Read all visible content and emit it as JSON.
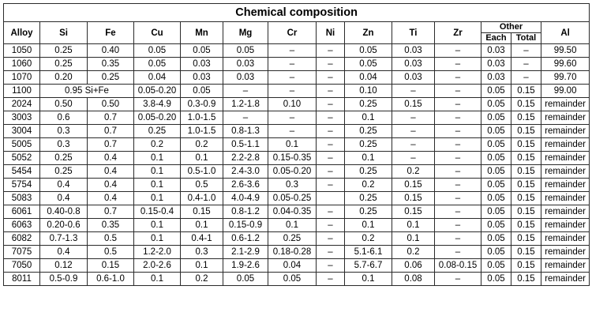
{
  "title": "Chemical composition",
  "headers": {
    "alloy": "Alloy",
    "elements": [
      "Si",
      "Fe",
      "Cu",
      "Mn",
      "Mg",
      "Cr",
      "Ni",
      "Zn",
      "Ti",
      "Zr"
    ],
    "other": "Other",
    "other_each": "Each",
    "other_total": "Total",
    "al": "Al"
  },
  "rows": [
    [
      "1050",
      "0.25",
      "0.40",
      "0.05",
      "0.05",
      "0.05",
      "–",
      "–",
      "0.05",
      "0.03",
      "–",
      "0.03",
      "–",
      "99.50"
    ],
    [
      "1060",
      "0.25",
      "0.35",
      "0.05",
      "0.03",
      "0.03",
      "–",
      "–",
      "0.05",
      "0.03",
      "–",
      "0.03",
      "–",
      "99.60"
    ],
    [
      "1070",
      "0.20",
      "0.25",
      "0.04",
      "0.03",
      "0.03",
      "–",
      "–",
      "0.04",
      "0.03",
      "–",
      "0.03",
      "–",
      "99.70"
    ],
    [
      "1100",
      "0.95 Si+Fe",
      "",
      "0.05-0.20",
      "0.05",
      "–",
      "–",
      "–",
      "0.10",
      "–",
      "–",
      "0.05",
      "0.15",
      "99.00"
    ],
    [
      "2024",
      "0.50",
      "0.50",
      "3.8-4.9",
      "0.3-0.9",
      "1.2-1.8",
      "0.10",
      "–",
      "0.25",
      "0.15",
      "–",
      "0.05",
      "0.15",
      "remainder"
    ],
    [
      "3003",
      "0.6",
      "0.7",
      "0.05-0.20",
      "1.0-1.5",
      "–",
      "–",
      "–",
      "0.1",
      "–",
      "–",
      "0.05",
      "0.15",
      "remainder"
    ],
    [
      "3004",
      "0.3",
      "0.7",
      "0.25",
      "1.0-1.5",
      "0.8-1.3",
      "–",
      "–",
      "0.25",
      "–",
      "–",
      "0.05",
      "0.15",
      "remainder"
    ],
    [
      "5005",
      "0.3",
      "0.7",
      "0.2",
      "0.2",
      "0.5-1.1",
      "0.1",
      "–",
      "0.25",
      "–",
      "–",
      "0.05",
      "0.15",
      "remainder"
    ],
    [
      "5052",
      "0.25",
      "0.4",
      "0.1",
      "0.1",
      "2.2-2.8",
      "0.15-0.35",
      "–",
      "0.1",
      "–",
      "–",
      "0.05",
      "0.15",
      "remainder"
    ],
    [
      "5454",
      "0.25",
      "0.4",
      "0.1",
      "0.5-1.0",
      "2.4-3.0",
      "0.05-0.20",
      "–",
      "0.25",
      "0.2",
      "–",
      "0.05",
      "0.15",
      "remainder"
    ],
    [
      "5754",
      "0.4",
      "0.4",
      "0.1",
      "0.5",
      "2.6-3.6",
      "0.3",
      "–",
      "0.2",
      "0.15",
      "–",
      "0.05",
      "0.15",
      "remainder"
    ],
    [
      "5083",
      "0.4",
      "0.4",
      "0.1",
      "0.4-1.0",
      "4.0-4.9",
      "0.05-0.25",
      "",
      "0.25",
      "0.15",
      "–",
      "0.05",
      "0.15",
      "remainder"
    ],
    [
      "6061",
      "0.40-0.8",
      "0.7",
      "0.15-0.4",
      "0.15",
      "0.8-1.2",
      "0.04-0.35",
      "–",
      "0.25",
      "0.15",
      "–",
      "0.05",
      "0.15",
      "remainder"
    ],
    [
      "6063",
      "0.20-0.6",
      "0.35",
      "0.1",
      "0.1",
      "0.15-0.9",
      "0.1",
      "–",
      "0.1",
      "0.1",
      "–",
      "0.05",
      "0.15",
      "remainder"
    ],
    [
      "6082",
      "0.7-1.3",
      "0.5",
      "0.1",
      "0.4-1",
      "0.6-1.2",
      "0.25",
      "–",
      "0.2",
      "0.1",
      "–",
      "0.05",
      "0.15",
      "remainder"
    ],
    [
      "7075",
      "0.4",
      "0.5",
      "1.2-2.0",
      "0.3",
      "2.1-2.9",
      "0.18-0.28",
      "–",
      "5.1-6.1",
      "0.2",
      "–",
      "0.05",
      "0.15",
      "remainder"
    ],
    [
      "7050",
      "0.12",
      "0.15",
      "2.0-2.6",
      "0.1",
      "1.9-2.6",
      "0.04",
      "–",
      "5.7-6.7",
      "0.06",
      "0.08-0.15",
      "0.05",
      "0.15",
      "remainder"
    ],
    [
      "8011",
      "0.5-0.9",
      "0.6-1.0",
      "0.1",
      "0.2",
      "0.05",
      "0.05",
      "–",
      "0.1",
      "0.08",
      "–",
      "0.05",
      "0.15",
      "remainder"
    ]
  ]
}
